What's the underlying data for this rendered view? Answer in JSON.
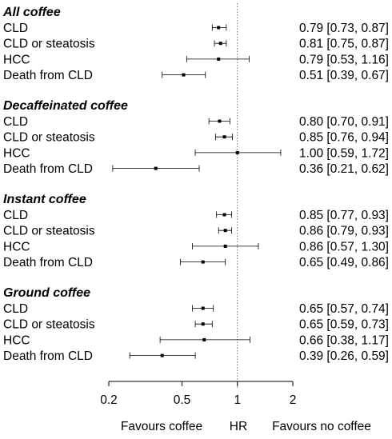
{
  "chart_data": {
    "type": "forest",
    "xscale": "log",
    "xlim": [
      0.2,
      2
    ],
    "xticks": [
      0.2,
      0.5,
      1,
      2
    ],
    "xtick_labels": [
      "0.2",
      "0.5",
      "1",
      "2"
    ],
    "reference_line": 1,
    "footer": {
      "left": "Favours coffee",
      "center": "HR",
      "right": "Favours no coffee"
    },
    "groups": [
      {
        "title": "All coffee",
        "rows": [
          {
            "label": "CLD",
            "hr": 0.79,
            "lo": 0.73,
            "hi": 0.87,
            "text": "0.79 [0.73, 0.87]"
          },
          {
            "label": "CLD or steatosis",
            "hr": 0.81,
            "lo": 0.75,
            "hi": 0.87,
            "text": "0.81 [0.75, 0.87]"
          },
          {
            "label": "HCC",
            "hr": 0.79,
            "lo": 0.53,
            "hi": 1.16,
            "text": "0.79 [0.53, 1.16]"
          },
          {
            "label": "Death from CLD",
            "hr": 0.51,
            "lo": 0.39,
            "hi": 0.67,
            "text": "0.51 [0.39, 0.67]"
          }
        ]
      },
      {
        "title": "Decaffeinated coffee",
        "rows": [
          {
            "label": "CLD",
            "hr": 0.8,
            "lo": 0.7,
            "hi": 0.91,
            "text": "0.80 [0.70, 0.91]"
          },
          {
            "label": "CLD or steatosis",
            "hr": 0.85,
            "lo": 0.76,
            "hi": 0.94,
            "text": "0.85 [0.76, 0.94]"
          },
          {
            "label": "HCC",
            "hr": 1.0,
            "lo": 0.59,
            "hi": 1.72,
            "text": "1.00 [0.59, 1.72]"
          },
          {
            "label": "Death from CLD",
            "hr": 0.36,
            "lo": 0.21,
            "hi": 0.62,
            "text": "0.36 [0.21, 0.62]"
          }
        ]
      },
      {
        "title": "Instant coffee",
        "rows": [
          {
            "label": "CLD",
            "hr": 0.85,
            "lo": 0.77,
            "hi": 0.93,
            "text": "0.85 [0.77, 0.93]"
          },
          {
            "label": "CLD or steatosis",
            "hr": 0.86,
            "lo": 0.79,
            "hi": 0.93,
            "text": "0.86 [0.79, 0.93]"
          },
          {
            "label": "HCC",
            "hr": 0.86,
            "lo": 0.57,
            "hi": 1.3,
            "text": "0.86 [0.57, 1.30]"
          },
          {
            "label": "Death from CLD",
            "hr": 0.65,
            "lo": 0.49,
            "hi": 0.86,
            "text": "0.65 [0.49, 0.86]"
          }
        ]
      },
      {
        "title": "Ground coffee",
        "rows": [
          {
            "label": "CLD",
            "hr": 0.65,
            "lo": 0.57,
            "hi": 0.74,
            "text": "0.65 [0.57, 0.74]"
          },
          {
            "label": "CLD or steatosis",
            "hr": 0.65,
            "lo": 0.59,
            "hi": 0.73,
            "text": "0.65 [0.59, 0.73]"
          },
          {
            "label": "HCC",
            "hr": 0.66,
            "lo": 0.38,
            "hi": 1.17,
            "text": "0.66 [0.38, 1.17]"
          },
          {
            "label": "Death from CLD",
            "hr": 0.39,
            "lo": 0.26,
            "hi": 0.59,
            "text": "0.39 [0.26, 0.59]"
          }
        ]
      }
    ]
  }
}
